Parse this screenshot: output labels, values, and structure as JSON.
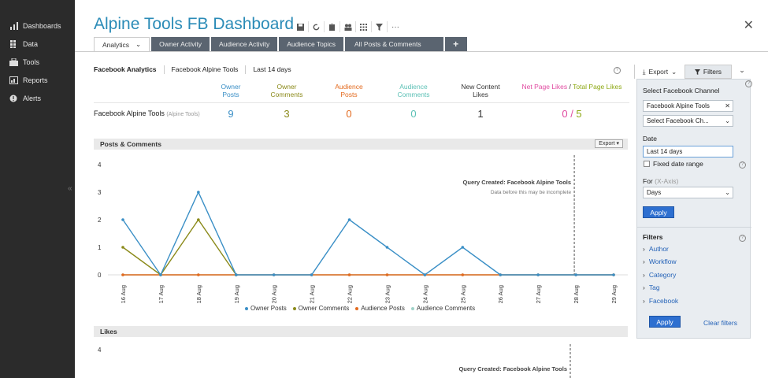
{
  "sidebar": {
    "items": [
      {
        "label": "Dashboards",
        "icon": "bar-chart-icon"
      },
      {
        "label": "Data",
        "icon": "grid-icon"
      },
      {
        "label": "Tools",
        "icon": "toolbox-icon"
      },
      {
        "label": "Reports",
        "icon": "report-icon"
      },
      {
        "label": "Alerts",
        "icon": "alert-icon"
      }
    ],
    "collapse_glyph": "«"
  },
  "header": {
    "title": "Alpine Tools FB Dashboard",
    "more_glyph": "···",
    "close_glyph": "✕",
    "tabs": [
      {
        "label": "Analytics"
      },
      {
        "label": "Owner Activity"
      },
      {
        "label": "Audience Activity"
      },
      {
        "label": "Audience Topics"
      },
      {
        "label": "All Posts & Comments"
      }
    ],
    "tab_chevron": "⌄",
    "add_tab": "+"
  },
  "subbar": {
    "items": [
      "Facebook Analytics",
      "Facebook Alpine Tools",
      "Last 14 days"
    ]
  },
  "stats": {
    "headers": [
      {
        "label": "Owner Posts",
        "color": "#3a8fc6"
      },
      {
        "label": "Owner Comments",
        "color": "#8b8a1a"
      },
      {
        "label": "Audience Posts",
        "color": "#e36a1e"
      },
      {
        "label": "Audience Comments",
        "color": "#5bc0b5"
      },
      {
        "label": "New Content Likes",
        "color": "#333333"
      }
    ],
    "net_likes_label_a": "Net Page Likes",
    "net_likes_sep": " / ",
    "net_likes_label_b": "Total Page Likes",
    "net_likes_color_a": "#e04aa0",
    "net_likes_color_b": "#8da814",
    "row_label": "Facebook Alpine Tools",
    "row_sub": "(Alpine Tools)",
    "values": [
      "9",
      "3",
      "0",
      "0",
      "1"
    ],
    "net_val_a": "0",
    "net_sep": " / ",
    "net_val_b": "5"
  },
  "posts_section": {
    "title": "Posts & Comments",
    "export_label": "Export ▾"
  },
  "likes_section": {
    "title": "Likes"
  },
  "chart_data": [
    {
      "type": "line",
      "title": "Posts & Comments",
      "categories": [
        "16 Aug",
        "17 Aug",
        "18 Aug",
        "19 Aug",
        "20 Aug",
        "21 Aug",
        "22 Aug",
        "23 Aug",
        "24 Aug",
        "25 Aug",
        "26 Aug",
        "27 Aug",
        "28 Aug",
        "29 Aug"
      ],
      "y_ticks": [
        "0",
        "1",
        "2",
        "3",
        "4"
      ],
      "ylim": [
        0,
        4
      ],
      "series": [
        {
          "name": "Owner Posts",
          "color": "#3a8fc6",
          "values": [
            2,
            0,
            3,
            0,
            0,
            0,
            2,
            1,
            0,
            1,
            0,
            0,
            0,
            0
          ]
        },
        {
          "name": "Owner Comments",
          "color": "#8b8a1a",
          "values": [
            1,
            0,
            2,
            0,
            null,
            null,
            null,
            null,
            null,
            null,
            null,
            null,
            null,
            null
          ]
        },
        {
          "name": "Audience Posts",
          "color": "#e36a1e",
          "values": [
            0,
            0,
            0,
            0,
            0,
            0,
            0,
            0,
            0,
            0,
            0,
            0,
            0,
            0
          ]
        },
        {
          "name": "Audience Comments",
          "color": "#9fd2c8",
          "values": [
            0,
            0,
            0,
            0,
            0,
            0,
            0,
            0,
            0,
            0,
            0,
            0,
            0,
            0
          ]
        }
      ],
      "annotation_title": "Query Created: Facebook Alpine Tools",
      "annotation_sub": "Data before this may be incomplete",
      "marker_after": "28 Aug"
    },
    {
      "type": "line",
      "title": "Likes",
      "y_ticks": [
        "4"
      ],
      "annotation_title": "Query Created: Facebook Alpine Tools"
    }
  ],
  "right_panel": {
    "export_label": "Export",
    "filters_label": "Filters",
    "chevron": "⌄",
    "channel_label": "Select Facebook Channel",
    "channel_value": "Facebook Alpine Tools",
    "channel_select_placeholder": "Select Facebook Ch...",
    "date_label": "Date",
    "date_value": "Last 14 days",
    "fixed_range_label": "Fixed date range",
    "for_label": "For",
    "for_hint": "(X-Axis)",
    "for_value": "Days",
    "apply_label": "Apply",
    "filters_title": "Filters",
    "filter_items": [
      "Author",
      "Workflow",
      "Category",
      "Tag",
      "Facebook"
    ],
    "apply2_label": "Apply",
    "clear_label": "Clear filters"
  }
}
